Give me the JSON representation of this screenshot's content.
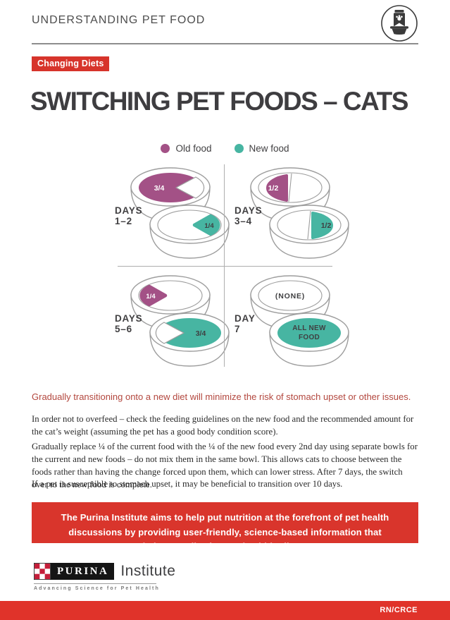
{
  "header": {
    "title": "UNDERSTANDING PET FOOD",
    "icon": "pet-food-bag-and-bowl"
  },
  "badge_label": "Changing Diets",
  "page_title": "SWITCHING PET FOODS – CATS",
  "legend": {
    "old": {
      "label": "Old food",
      "color": "#a35186"
    },
    "new": {
      "label": "New food",
      "color": "#47b5a2"
    }
  },
  "colors": {
    "red": "#d7342b",
    "old_food": "#a35186",
    "new_food": "#47b5a2",
    "highlight_text": "#b3473e",
    "text_dark": "#414042",
    "bowl_stroke": "#9d9d9d"
  },
  "diagram": {
    "quadrants": [
      {
        "id": "days-1-2",
        "label_line1": "DAYS",
        "label_line2": "1–2",
        "bowls": [
          {
            "pos": "top",
            "shape": "three-quarter",
            "food": "old",
            "side": "left",
            "label": "3/4"
          },
          {
            "pos": "bottom",
            "shape": "quarter",
            "food": "new",
            "side": "right",
            "label": "1/4"
          }
        ]
      },
      {
        "id": "days-3-4",
        "label_line1": "DAYS",
        "label_line2": "3–4",
        "bowls": [
          {
            "pos": "top",
            "shape": "half",
            "food": "old",
            "side": "left",
            "label": "1/2"
          },
          {
            "pos": "bottom",
            "shape": "half",
            "food": "new",
            "side": "right",
            "label": "1/2"
          }
        ]
      },
      {
        "id": "days-5-6",
        "label_line1": "DAYS",
        "label_line2": "5–6",
        "bowls": [
          {
            "pos": "top",
            "shape": "quarter",
            "food": "old",
            "side": "left",
            "label": "1/4"
          },
          {
            "pos": "bottom",
            "shape": "three-quarter",
            "food": "new",
            "side": "right",
            "label": "3/4"
          }
        ]
      },
      {
        "id": "day-7",
        "label_line1": "DAY",
        "label_line2": "7",
        "bowls": [
          {
            "pos": "top",
            "shape": "empty",
            "food": null,
            "side": null,
            "label": "(NONE)"
          },
          {
            "pos": "bottom",
            "shape": "full",
            "food": "new",
            "side": null,
            "label": "ALL NEW FOOD"
          }
        ]
      }
    ]
  },
  "highlight_sentence": "Gradually transitioning onto a new diet will minimize the risk of stomach upset or other issues.",
  "body": {
    "paragraphs": [
      "In order not to overfeed – check the feeding guidelines on the new food and the recommended amount for the cat’s weight (assuming the pet has a good body condition score).",
      "Gradually replace ¼ of the current food with the ¼ of the new food every 2nd day using separate bowls for the current and new foods – do not mix them in the same bowl. This allows cats to choose between the foods rather than having the change forced upon them, which can lower stress. After 7 days, the switch over to the new food is complete.",
      "If a pet is susceptible to stomach upset, it may be beneficial to transition over 10 days."
    ]
  },
  "info_box": "The Purina Institute aims to help put nutrition at the forefront of pet health discussions by providing user-friendly, science-based information that helps pets live longer, healthier lives.",
  "footer": {
    "brand": "PURINA",
    "brand_suffix": "Institute",
    "tagline": "Advancing Science for Pet Health",
    "doc_code": "RN/CRCE"
  }
}
